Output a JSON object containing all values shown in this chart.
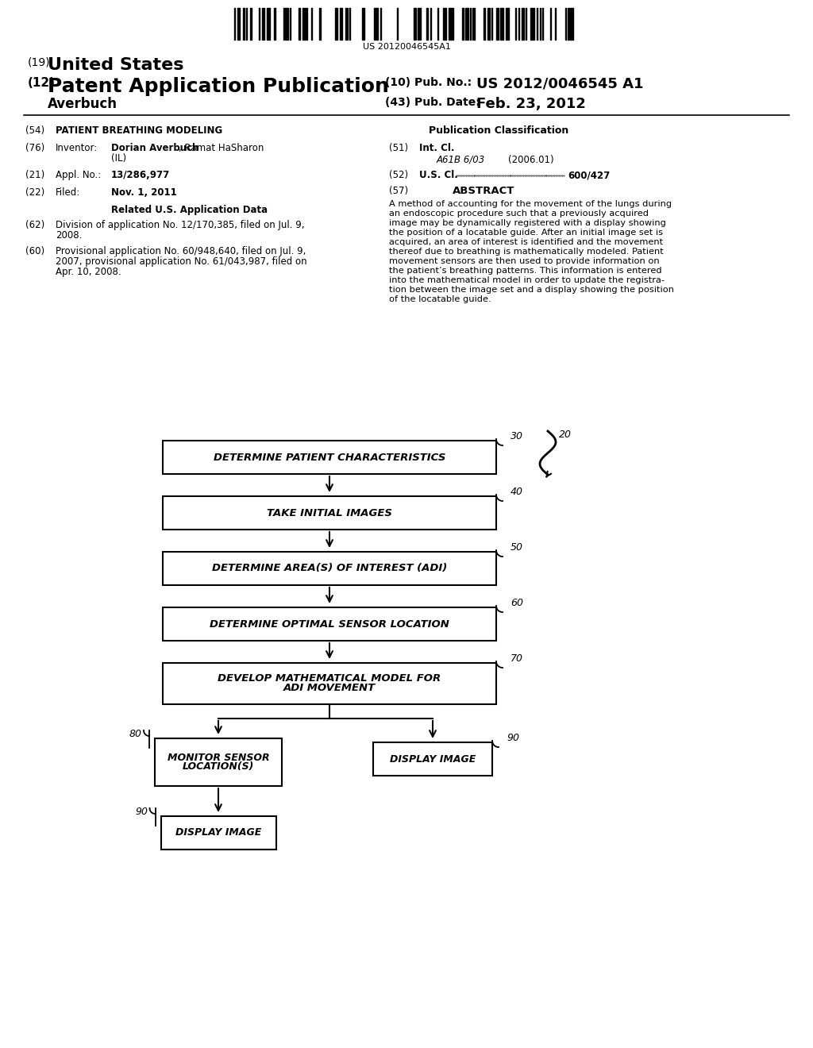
{
  "bg_color": "#ffffff",
  "barcode_text": "US 20120046545A1",
  "title_19": "(19) United States",
  "title_12_prefix": "(12)",
  "title_12_main": "Patent Application Publication",
  "inventor_name": "Averbuch",
  "pub_no_label": "(10) Pub. No.:",
  "pub_no": "US 2012/0046545 A1",
  "pub_date_label": "(43) Pub. Date:",
  "pub_date": "Feb. 23, 2012",
  "section54_label": "(54)",
  "section54_title": "PATIENT BREATHING MODELING",
  "pub_class_title": "Publication Classification",
  "section76_label": "(76)",
  "section76_key": "Inventor:",
  "section76_bold": "Dorian Averbuch",
  "section76_rest": ", Ramat HaSharon",
  "section76_line2": "(IL)",
  "section21_label": "(21)",
  "section21_key": "Appl. No.:",
  "section21_val": "13/286,977",
  "section22_label": "(22)",
  "section22_key": "Filed:",
  "section22_val": "Nov. 1, 2011",
  "related_title": "Related U.S. Application Data",
  "section62_label": "(62)",
  "section62_line1": "Division of application No. 12/170,385, filed on Jul. 9,",
  "section62_line2": "2008.",
  "section60_label": "(60)",
  "section60_line1": "Provisional application No. 60/948,640, filed on Jul. 9,",
  "section60_line2": "2007, provisional application No. 61/043,987, filed on",
  "section60_line3": "Apr. 10, 2008.",
  "section51_label": "(51)",
  "section51_key": "Int. Cl.",
  "section51_class": "A61B 6/03",
  "section51_year": "(2006.01)",
  "section52_label": "(52)",
  "section52_key": "U.S. Cl.",
  "section52_val": "600/427",
  "section57_label": "(57)",
  "abstract_title": "ABSTRACT",
  "abstract_lines": [
    "A method of accounting for the movement of the lungs during",
    "an endoscopic procedure such that a previously acquired",
    "image may be dynamically registered with a display showing",
    "the position of a locatable guide. After an initial image set is",
    "acquired, an area of interest is identified and the movement",
    "thereof due to breathing is mathematically modeled. Patient",
    "movement sensors are then used to provide information on",
    "the patient’s breathing patterns. This information is entered",
    "into the mathematical model in order to update the registra-",
    "tion between the image set and a display showing the position",
    "of the locatable guide."
  ],
  "box30_label": "30",
  "box20_label": "20",
  "box30_text": "DETERMINE PATIENT CHARACTERISTICS",
  "box40_label": "40",
  "box40_text": "TAKE INITIAL IMAGES",
  "box50_label": "50",
  "box50_text": "DETERMINE AREA(S) OF INTEREST (ADI)",
  "box60_label": "60",
  "box60_text": "DETERMINE OPTIMAL SENSOR LOCATION",
  "box70_label": "70",
  "box70_line1": "DEVELOP MATHEMATICAL MODEL FOR",
  "box70_line2": "ADI MOVEMENT",
  "box80_label": "80",
  "box80_line1": "MONITOR SENSOR",
  "box80_line2": "LOCATION(S)",
  "box90a_label": "90",
  "box90a_text": "DISPLAY IMAGE",
  "box90b_label": "90",
  "box90b_text": "DISPLAY IMAGE"
}
